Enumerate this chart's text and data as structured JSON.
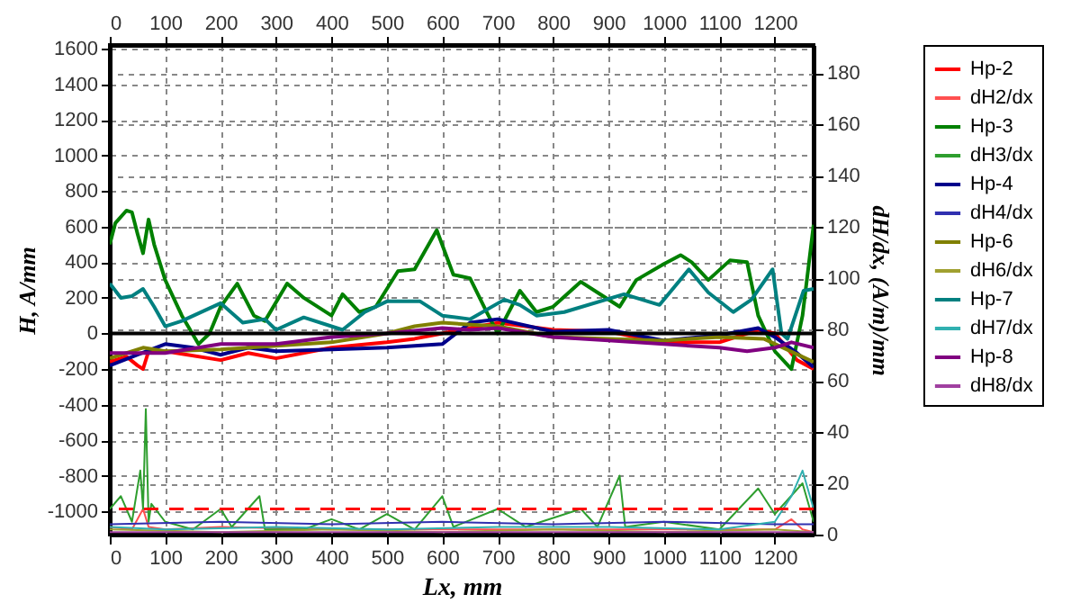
{
  "chart_data": {
    "type": "line",
    "xlabel": "Lx,  mm",
    "ylabel": "H,  A/mm",
    "y2label": "dH/dx,  (A/m)/mm",
    "xlim": [
      0,
      1270
    ],
    "xticks": [
      0,
      100,
      200,
      300,
      400,
      500,
      600,
      700,
      800,
      900,
      1000,
      1100,
      1200
    ],
    "x2lim": [
      0,
      1270
    ],
    "x2ticks": [
      0,
      100,
      200,
      300,
      400,
      500,
      600,
      700,
      800,
      900,
      1000,
      1100,
      1200
    ],
    "ylim": [
      -1130,
      1620
    ],
    "yticks": [
      -1000,
      -800,
      -600,
      -400,
      -200,
      0,
      200,
      400,
      600,
      800,
      1000,
      1200,
      1400,
      1600
    ],
    "y2lim": [
      0,
      191
    ],
    "y2ticks": [
      0,
      20,
      40,
      60,
      80,
      100,
      120,
      140,
      160,
      180
    ],
    "grid": true,
    "legend": "top right",
    "marker": "none",
    "line_style": "solid",
    "ref_lines": [
      {
        "axis": "y",
        "value": 0,
        "color": "#000000"
      },
      {
        "axis": "y2",
        "value": 10,
        "color": "#ff0000",
        "line_style": "dashed"
      }
    ],
    "series": [
      {
        "name": "Hp-2",
        "color": "#ff0000",
        "x": [
          0,
          30,
          50,
          60,
          70,
          100,
          200,
          250,
          300,
          400,
          500,
          550,
          600,
          650,
          700,
          800,
          900,
          1000,
          1100,
          1170,
          1200,
          1240,
          1270
        ],
        "values": [
          -160,
          -130,
          -180,
          -200,
          -100,
          -100,
          -150,
          -110,
          -140,
          -80,
          -50,
          -30,
          0,
          30,
          60,
          20,
          10,
          -50,
          -50,
          20,
          0,
          -150,
          -200
        ]
      },
      {
        "name": "dH2/dx",
        "color": "#ff5050",
        "axis": "y2",
        "x": [
          0,
          40,
          60,
          70,
          100,
          200,
          400,
          600,
          800,
          1000,
          1200,
          1230,
          1250,
          1270
        ],
        "values": [
          3,
          2,
          10,
          3,
          2,
          3,
          2,
          2,
          2,
          2,
          2,
          6,
          2,
          1
        ]
      },
      {
        "name": "Hp-3",
        "color": "#008000",
        "x": [
          0,
          10,
          30,
          40,
          50,
          60,
          70,
          80,
          100,
          130,
          160,
          180,
          200,
          230,
          260,
          280,
          320,
          350,
          400,
          420,
          450,
          480,
          520,
          550,
          590,
          620,
          650,
          680,
          700,
          740,
          770,
          800,
          850,
          880,
          920,
          950,
          1000,
          1030,
          1050,
          1080,
          1119,
          1150,
          1170,
          1200,
          1230,
          1250,
          1270
        ],
        "values": [
          500,
          620,
          690,
          680,
          560,
          450,
          640,
          500,
          300,
          100,
          -60,
          0,
          150,
          280,
          100,
          70,
          280,
          200,
          100,
          220,
          120,
          150,
          350,
          360,
          580,
          330,
          310,
          120,
          0,
          240,
          120,
          150,
          290,
          230,
          150,
          300,
          390,
          440,
          400,
          300,
          410,
          400,
          100,
          -100,
          -200,
          100,
          610
        ]
      },
      {
        "name": "dH3/dx",
        "color": "#2e9e2e",
        "axis": "y2",
        "x": [
          0,
          20,
          40,
          55,
          60,
          65,
          70,
          75,
          100,
          150,
          200,
          220,
          270,
          280,
          350,
          400,
          450,
          500,
          550,
          600,
          620,
          700,
          750,
          850,
          880,
          920,
          930,
          1000,
          1100,
          1170,
          1200,
          1250,
          1270
        ],
        "values": [
          10,
          15,
          5,
          25,
          10,
          49,
          5,
          12,
          5,
          2,
          10,
          3,
          15,
          2,
          2,
          6,
          2,
          8,
          2,
          15,
          3,
          10,
          3,
          10,
          3,
          23,
          3,
          5,
          2,
          18,
          8,
          20,
          5
        ]
      },
      {
        "name": "Hp-4",
        "color": "#00008b",
        "x": [
          0,
          50,
          100,
          150,
          200,
          250,
          300,
          400,
          500,
          600,
          650,
          700,
          800,
          900,
          1000,
          1100,
          1170,
          1200,
          1240,
          1270
        ],
        "values": [
          -180,
          -120,
          -60,
          -80,
          -120,
          -80,
          -100,
          -90,
          -80,
          -60,
          60,
          80,
          10,
          20,
          -40,
          -10,
          30,
          -20,
          -110,
          -190
        ]
      },
      {
        "name": "dH4/dx",
        "color": "#3030b0",
        "axis": "y2",
        "x": [
          0,
          200,
          400,
          600,
          800,
          1000,
          1200,
          1270
        ],
        "values": [
          4,
          5,
          4,
          5,
          4,
          5,
          4,
          4
        ]
      },
      {
        "name": "Hp-6",
        "color": "#808000",
        "x": [
          0,
          60,
          100,
          200,
          300,
          400,
          500,
          550,
          600,
          700,
          800,
          900,
          1000,
          1100,
          1180,
          1270
        ],
        "values": [
          -140,
          -80,
          -100,
          -90,
          -70,
          -50,
          0,
          40,
          60,
          40,
          -20,
          -30,
          -40,
          -20,
          -30,
          -160
        ]
      },
      {
        "name": "dH6/dx",
        "color": "#a0a030",
        "axis": "y2",
        "x": [
          0,
          200,
          400,
          600,
          800,
          1000,
          1200,
          1270
        ],
        "values": [
          2,
          1,
          2,
          1,
          2,
          1,
          2,
          1
        ]
      },
      {
        "name": "Hp-7",
        "color": "#008080",
        "x": [
          0,
          20,
          40,
          60,
          80,
          100,
          130,
          200,
          240,
          280,
          300,
          350,
          420,
          460,
          500,
          560,
          600,
          650,
          712,
          740,
          770,
          820,
          928,
          992,
          1045,
          1080,
          1125,
          1158,
          1196,
          1212,
          1223,
          1252,
          1270
        ],
        "values": [
          280,
          200,
          210,
          250,
          150,
          40,
          70,
          170,
          60,
          80,
          20,
          90,
          20,
          120,
          180,
          180,
          100,
          80,
          190,
          160,
          100,
          120,
          220,
          160,
          360,
          230,
          120,
          190,
          360,
          0,
          -30,
          240,
          250
        ]
      },
      {
        "name": "dH7/dx",
        "color": "#30b0b0",
        "axis": "y2",
        "x": [
          0,
          100,
          300,
          500,
          700,
          900,
          1100,
          1200,
          1230,
          1250,
          1270
        ],
        "values": [
          3,
          2,
          3,
          2,
          3,
          3,
          2,
          5,
          15,
          25,
          10
        ]
      },
      {
        "name": "Hp-8",
        "color": "#800080",
        "x": [
          0,
          100,
          200,
          300,
          400,
          500,
          600,
          650,
          700,
          800,
          900,
          1000,
          1100,
          1150,
          1200,
          1230,
          1270
        ],
        "values": [
          -110,
          -110,
          -60,
          -60,
          -20,
          0,
          30,
          20,
          30,
          -20,
          -40,
          -60,
          -80,
          -100,
          -80,
          -50,
          -80
        ]
      },
      {
        "name": "dH8/dx",
        "color": "#a040a0",
        "axis": "y2",
        "x": [
          0,
          200,
          400,
          600,
          800,
          1000,
          1200,
          1270
        ],
        "values": [
          1,
          1,
          1,
          1,
          1,
          1,
          1,
          1
        ]
      }
    ]
  }
}
